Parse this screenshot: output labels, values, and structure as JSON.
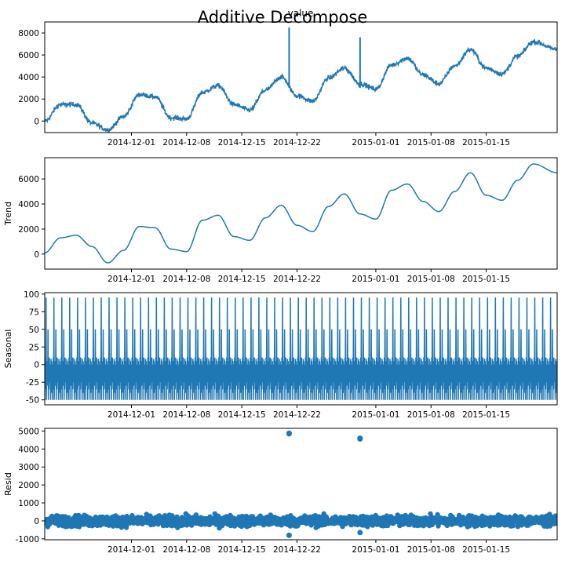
{
  "figure": {
    "suptitle": "Additive Decompose",
    "top_title": "value"
  },
  "colors": {
    "series": "#1f77b4",
    "axis": "#000000"
  },
  "chart_data": [
    {
      "type": "line",
      "panel": "observed",
      "title": "value",
      "ylabel": "",
      "x_range": [
        "2014-11-20",
        "2015-01-24"
      ],
      "ylim": [
        -1050,
        9000
      ],
      "yticks": [
        0,
        2000,
        4000,
        6000,
        8000
      ],
      "xticks": [
        "2014-12-01",
        "2014-12-08",
        "2014-12-15",
        "2014-12-22",
        "2015-01-01",
        "2015-01-08",
        "2015-01-15"
      ],
      "description": "Sinusoid with ~8-day period, rising trend, noise and two spikes",
      "series": [
        {
          "x": [
            "2014-11-20",
            "2014-11-22",
            "2014-11-24",
            "2014-11-26",
            "2014-11-28",
            "2014-11-30",
            "2014-12-02",
            "2014-12-04",
            "2014-12-06",
            "2014-12-08",
            "2014-12-10",
            "2014-12-12",
            "2014-12-14",
            "2014-12-16",
            "2014-12-18",
            "2014-12-20",
            "2014-12-22",
            "2014-12-24",
            "2014-12-26",
            "2014-12-28",
            "2014-12-30",
            "2015-01-01",
            "2015-01-03",
            "2015-01-05",
            "2015-01-07",
            "2015-01-09",
            "2015-01-11",
            "2015-01-13",
            "2015-01-15",
            "2015-01-17",
            "2015-01-19",
            "2015-01-21",
            "2015-01-24"
          ],
          "values": [
            0,
            1500,
            1500,
            -200,
            -800,
            400,
            2400,
            2200,
            300,
            200,
            2600,
            3200,
            1500,
            1000,
            2800,
            4000,
            2300,
            1800,
            3900,
            4800,
            3400,
            2900,
            5100,
            5700,
            4200,
            3400,
            5000,
            6500,
            4800,
            4300,
            5900,
            7200,
            6500
          ]
        }
      ],
      "spikes": [
        {
          "x": "2014-12-21",
          "value": 8500
        },
        {
          "x": "2014-12-30",
          "value": 7600
        }
      ]
    },
    {
      "type": "line",
      "panel": "trend",
      "ylabel": "Trend",
      "x_range": [
        "2014-11-20",
        "2015-01-24"
      ],
      "ylim": [
        -1200,
        7700
      ],
      "yticks": [
        0,
        2000,
        4000,
        6000
      ],
      "xticks": [
        "2014-12-01",
        "2014-12-08",
        "2014-12-15",
        "2014-12-22",
        "2015-01-01",
        "2015-01-08",
        "2015-01-15"
      ],
      "series": [
        {
          "x": [
            "2014-11-20",
            "2014-11-22",
            "2014-11-24",
            "2014-11-26",
            "2014-11-28",
            "2014-11-30",
            "2014-12-02",
            "2014-12-04",
            "2014-12-06",
            "2014-12-08",
            "2014-12-10",
            "2014-12-12",
            "2014-12-14",
            "2014-12-16",
            "2014-12-18",
            "2014-12-20",
            "2014-12-22",
            "2014-12-24",
            "2014-12-26",
            "2014-12-28",
            "2014-12-30",
            "2015-01-01",
            "2015-01-03",
            "2015-01-05",
            "2015-01-07",
            "2015-01-09",
            "2015-01-11",
            "2015-01-13",
            "2015-01-15",
            "2015-01-17",
            "2015-01-19",
            "2015-01-21",
            "2015-01-24"
          ],
          "values": [
            100,
            1300,
            1500,
            600,
            -700,
            300,
            2200,
            2100,
            400,
            200,
            2700,
            3100,
            1400,
            1100,
            2900,
            3900,
            2300,
            1800,
            3800,
            4800,
            3200,
            2800,
            5100,
            5600,
            4200,
            3400,
            5000,
            6500,
            4700,
            4300,
            5900,
            7200,
            6500
          ]
        }
      ]
    },
    {
      "type": "line",
      "panel": "seasonal",
      "ylabel": "Seasonal",
      "x_range": [
        "2014-11-20",
        "2015-01-24"
      ],
      "ylim": [
        -57,
        102
      ],
      "yticks": [
        -50,
        -25,
        0,
        25,
        50,
        75,
        100
      ],
      "xticks": [
        "2014-12-01",
        "2014-12-08",
        "2014-12-15",
        "2014-12-22",
        "2015-01-01",
        "2015-01-08",
        "2015-01-15"
      ],
      "period_days": 1,
      "one_period_values": [
        -50,
        -20,
        10,
        -35,
        95,
        -50,
        0,
        -30,
        5,
        -20,
        50,
        -50,
        5,
        -35,
        10,
        -25,
        0,
        -10,
        -50,
        8,
        -40,
        5,
        -20,
        0
      ]
    },
    {
      "type": "scatter",
      "panel": "resid",
      "ylabel": "Resid",
      "x_range": [
        "2014-11-20",
        "2015-01-24"
      ],
      "ylim": [
        -1050,
        5150
      ],
      "yticks": [
        -1000,
        0,
        1000,
        2000,
        3000,
        4000,
        5000
      ],
      "xticks": [
        "2014-12-01",
        "2014-12-08",
        "2014-12-15",
        "2014-12-22",
        "2015-01-01",
        "2015-01-08",
        "2015-01-15"
      ],
      "noise_band": [
        -400,
        400
      ],
      "outliers": [
        {
          "x": "2014-12-21",
          "value": 4850
        },
        {
          "x": "2014-12-21",
          "value": 4880
        },
        {
          "x": "2014-12-30",
          "value": 4560
        },
        {
          "x": "2014-12-30",
          "value": 4600
        },
        {
          "x": "2014-12-21",
          "value": -800
        },
        {
          "x": "2014-12-30",
          "value": -650
        }
      ]
    }
  ]
}
